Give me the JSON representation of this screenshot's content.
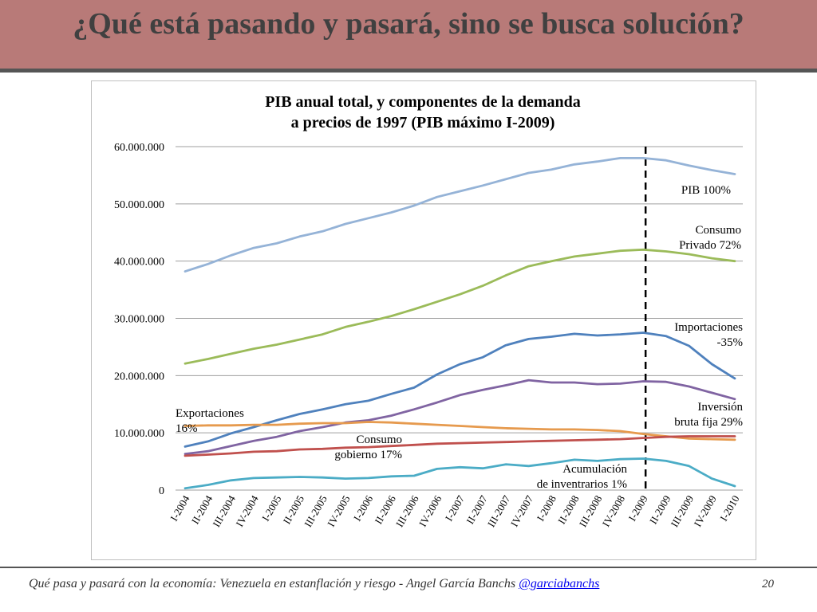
{
  "slide": {
    "title": "¿Qué está pasando y pasará, sino se busca solución?",
    "footer_text": "Qué pasa y pasará con la economía: Venezuela en estanflación y riesgo - Angel García Banchs",
    "footer_link": "@garciabanchs",
    "page_number": "20"
  },
  "chart_data": {
    "type": "line",
    "title": [
      "PIB anual total, y componentes de la demanda",
      "a precios de 1997 (PIB máximo I-2009)"
    ],
    "categories": [
      "I-2004",
      "II-2004",
      "III-2004",
      "IV-2004",
      "I-2005",
      "II-2005",
      "III-2005",
      "IV-2005",
      "I-2006",
      "II-2006",
      "III-2006",
      "IV-2006",
      "I-2007",
      "II-2007",
      "III-2007",
      "IV-2007",
      "I-2008",
      "II-2008",
      "III-2008",
      "IV-2008",
      "I-2009",
      "II-2009",
      "III-2009",
      "IV-2009",
      "I-2010"
    ],
    "y_ticks": [
      "0",
      "10.000.000",
      "20.000.000",
      "30.000.000",
      "40.000.000",
      "50.000.000",
      "60.000.000"
    ],
    "ylim": [
      0,
      60000000
    ],
    "grid": true,
    "vertical_marker": {
      "category": "I-2009",
      "style": "dashed"
    },
    "series": [
      {
        "name": [
          "PIB 100%"
        ],
        "color": "#95b3d7",
        "values": [
          38200000,
          39500000,
          41000000,
          42300000,
          43100000,
          44300000,
          45200000,
          46500000,
          47500000,
          48500000,
          49700000,
          51200000,
          52200000,
          53200000,
          54300000,
          55400000,
          56000000,
          56900000,
          57400000,
          58000000,
          58000000,
          57600000,
          56700000,
          55900000,
          55200000
        ]
      },
      {
        "name": [
          "Consumo",
          "Privado 72%"
        ],
        "color": "#9bbb59",
        "values": [
          22100000,
          22900000,
          23800000,
          24700000,
          25400000,
          26300000,
          27200000,
          28500000,
          29400000,
          30400000,
          31600000,
          32900000,
          34200000,
          35700000,
          37500000,
          39100000,
          40000000,
          40800000,
          41300000,
          41800000,
          42000000,
          41700000,
          41200000,
          40500000,
          40000000
        ]
      },
      {
        "name": [
          "Importaciones",
          "-35%"
        ],
        "color": "#4f81bd",
        "values": [
          7600000,
          8500000,
          9900000,
          11000000,
          12200000,
          13300000,
          14100000,
          15000000,
          15600000,
          16800000,
          17900000,
          20200000,
          22000000,
          23200000,
          25300000,
          26400000,
          26800000,
          27300000,
          27000000,
          27200000,
          27500000,
          26900000,
          25200000,
          22000000,
          19500000
        ]
      },
      {
        "name": [
          "Inversión",
          "bruta fija 29%"
        ],
        "color": "#8064a2",
        "values": [
          6300000,
          6800000,
          7700000,
          8600000,
          9300000,
          10300000,
          11000000,
          11800000,
          12200000,
          13000000,
          14100000,
          15300000,
          16600000,
          17500000,
          18300000,
          19200000,
          18800000,
          18800000,
          18500000,
          18600000,
          19000000,
          18900000,
          18100000,
          17000000,
          15900000
        ]
      },
      {
        "name": [
          "Exportaciones",
          "16%"
        ],
        "color": "#e69a4e",
        "values": [
          11200000,
          11300000,
          11300000,
          11400000,
          11400000,
          11600000,
          11700000,
          11700000,
          11900000,
          11800000,
          11600000,
          11400000,
          11200000,
          11000000,
          10800000,
          10700000,
          10600000,
          10600000,
          10500000,
          10300000,
          9800000,
          9400000,
          9000000,
          8900000,
          8800000
        ]
      },
      {
        "name": [
          "Consumo",
          "gobierno 17%"
        ],
        "color": "#c0504d",
        "values": [
          6000000,
          6200000,
          6400000,
          6700000,
          6800000,
          7100000,
          7200000,
          7400000,
          7500000,
          7700000,
          7900000,
          8100000,
          8200000,
          8300000,
          8400000,
          8500000,
          8600000,
          8700000,
          8800000,
          8900000,
          9100000,
          9300000,
          9400000,
          9400000,
          9400000
        ]
      },
      {
        "name": [
          "Acumulación",
          "de inventrarios 1%"
        ],
        "color": "#4bacc6",
        "values": [
          300000,
          900000,
          1700000,
          2100000,
          2200000,
          2300000,
          2200000,
          2000000,
          2100000,
          2400000,
          2500000,
          3700000,
          4000000,
          3800000,
          4500000,
          4200000,
          4700000,
          5300000,
          5100000,
          5400000,
          5500000,
          5100000,
          4200000,
          2000000,
          700000
        ]
      }
    ]
  }
}
